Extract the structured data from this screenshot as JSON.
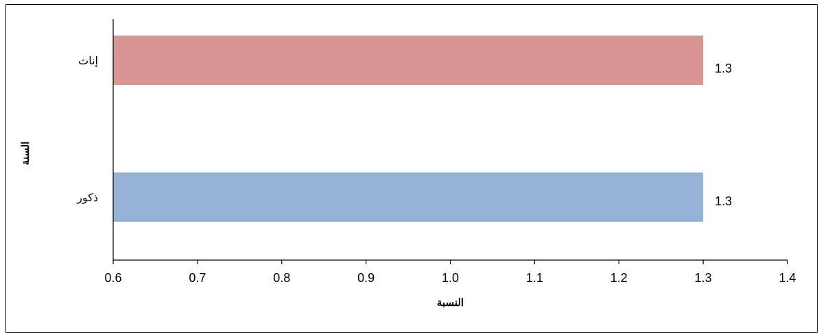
{
  "chart_data": {
    "type": "bar",
    "orientation": "horizontal",
    "categories": [
      "إناث",
      "ذكور"
    ],
    "values": [
      1.3,
      1.3
    ],
    "data_labels": [
      "1.3",
      "1.3"
    ],
    "xlabel": "النسبة",
    "ylabel": "السنة",
    "xlim": [
      0.6,
      1.4
    ],
    "xticks": [
      "0.6",
      "0.7",
      "0.8",
      "0.9",
      "1.0",
      "1.1",
      "1.2",
      "1.3",
      "1.4"
    ],
    "grid": false,
    "colors": [
      "#d99594",
      "#95b3d7"
    ]
  }
}
